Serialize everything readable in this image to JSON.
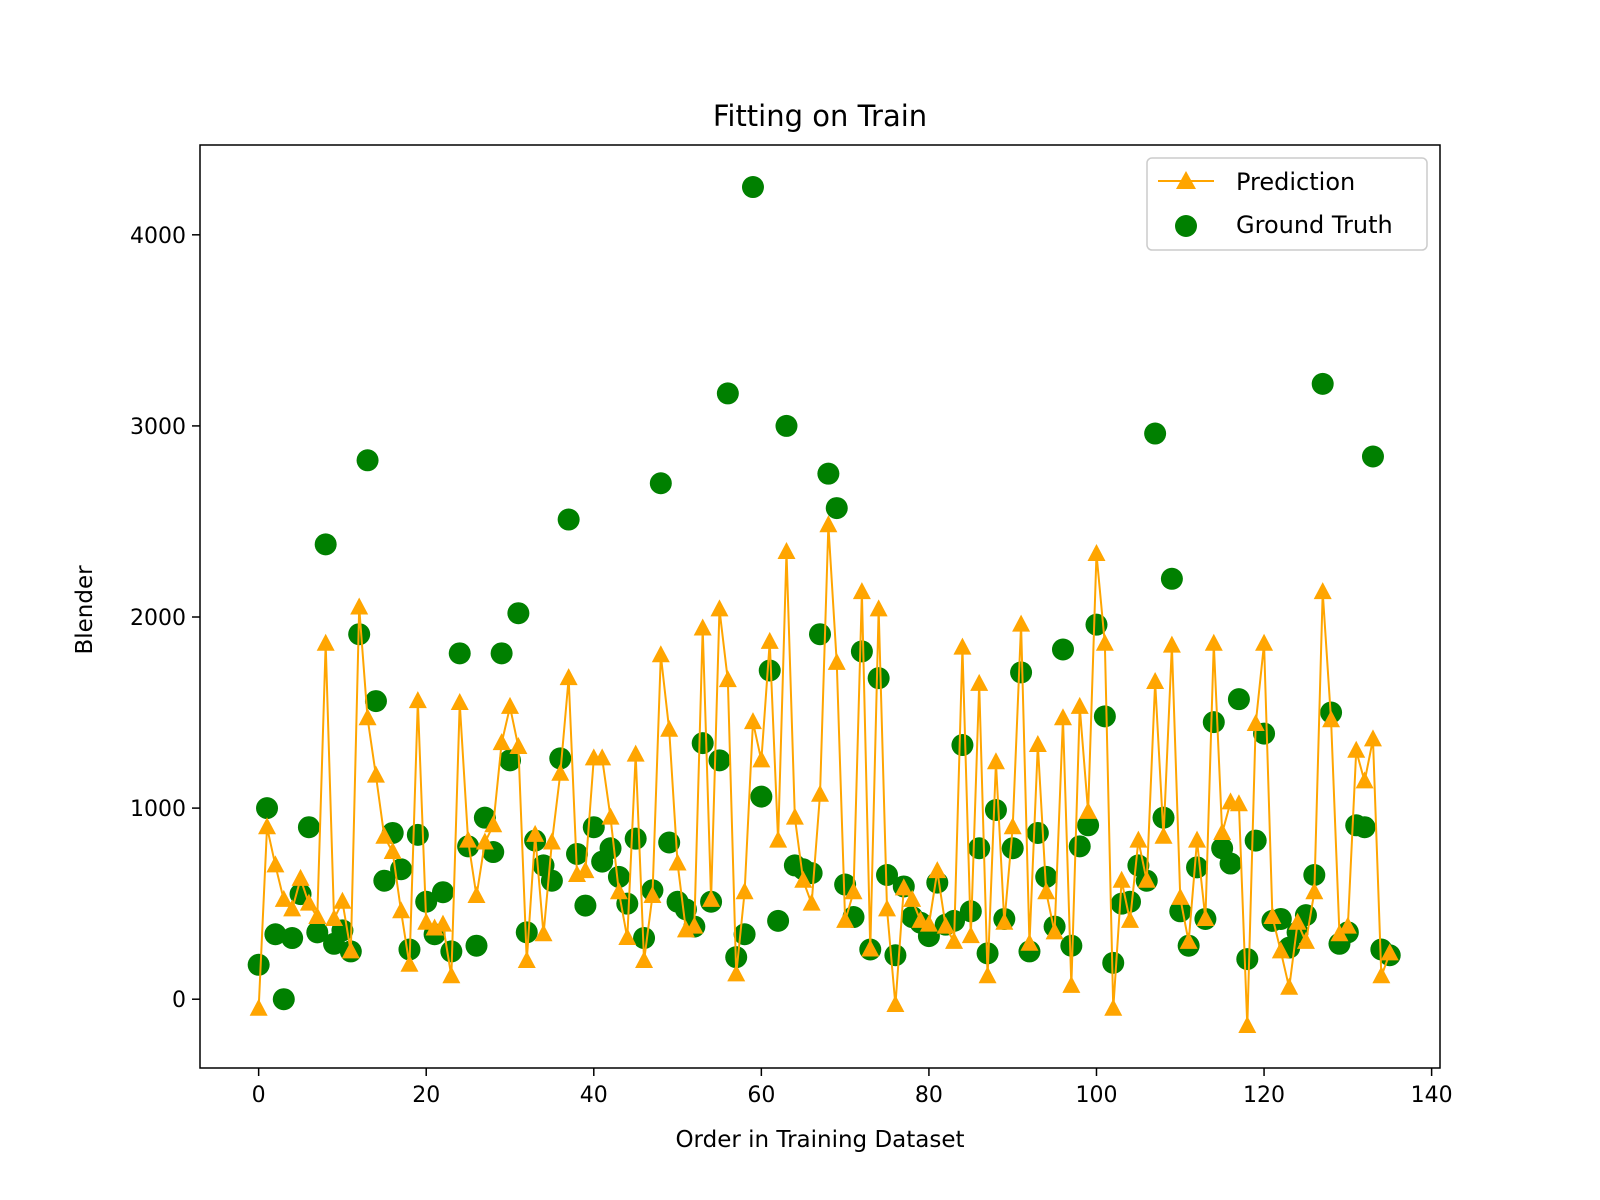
{
  "chart_data": {
    "type": "scatter",
    "title": "Fitting on Train",
    "xlabel": "Order in Training Dataset",
    "ylabel": "Blender",
    "xlim": [
      -7,
      141
    ],
    "ylim": [
      -360,
      4470
    ],
    "xticks": [
      0,
      20,
      40,
      60,
      80,
      100,
      120,
      140
    ],
    "yticks": [
      0,
      1000,
      2000,
      3000,
      4000
    ],
    "grid": false,
    "legend_position": "top-right",
    "series": [
      {
        "name": "Prediction",
        "style": "line-triangle",
        "color": "#FFA500",
        "x": [
          0,
          1,
          2,
          3,
          4,
          5,
          6,
          7,
          8,
          9,
          10,
          11,
          12,
          13,
          14,
          15,
          16,
          17,
          18,
          19,
          20,
          21,
          22,
          23,
          24,
          25,
          26,
          27,
          28,
          29,
          30,
          31,
          32,
          33,
          34,
          35,
          36,
          37,
          38,
          39,
          40,
          41,
          42,
          43,
          44,
          45,
          46,
          47,
          48,
          49,
          50,
          51,
          52,
          53,
          54,
          55,
          56,
          57,
          58,
          59,
          60,
          61,
          62,
          63,
          64,
          65,
          66,
          67,
          68,
          69,
          70,
          71,
          72,
          73,
          74,
          75,
          76,
          77,
          78,
          79,
          80,
          81,
          82,
          83,
          84,
          85,
          86,
          87,
          88,
          89,
          90,
          91,
          92,
          93,
          94,
          95,
          96,
          97,
          98,
          99,
          100,
          101,
          102,
          103,
          104,
          105,
          106,
          107,
          108,
          109,
          110,
          111,
          112,
          113,
          114,
          115,
          116,
          117,
          118,
          119,
          120,
          121,
          122,
          123,
          124,
          125,
          126,
          127,
          128,
          129,
          130,
          131,
          132,
          133,
          134,
          135
        ],
        "y": [
          -50,
          900,
          700,
          520,
          470,
          630,
          500,
          430,
          1860,
          420,
          510,
          250,
          2050,
          1470,
          1170,
          850,
          770,
          460,
          180,
          1560,
          400,
          370,
          390,
          120,
          1550,
          830,
          540,
          820,
          910,
          1340,
          1530,
          1320,
          200,
          860,
          340,
          820,
          1180,
          1680,
          650,
          670,
          1260,
          1260,
          950,
          560,
          320,
          1280,
          200,
          540,
          1800,
          1410,
          710,
          360,
          380,
          1940,
          520,
          2040,
          1670,
          130,
          560,
          1450,
          1250,
          1870,
          830,
          2340,
          950,
          620,
          500,
          1070,
          2480,
          1760,
          410,
          560,
          2130,
          260,
          2040,
          470,
          -30,
          580,
          520,
          410,
          390,
          670,
          380,
          300,
          1840,
          330,
          1650,
          120,
          1240,
          400,
          900,
          1960,
          290,
          1330,
          560,
          350,
          1470,
          70,
          1530,
          980,
          2330,
          1860,
          -50,
          620,
          410,
          830,
          620,
          1660,
          850,
          1850,
          530,
          300,
          830,
          420,
          1860,
          870,
          1030,
          1020,
          -140,
          1440,
          1860,
          430,
          250,
          60,
          400,
          300,
          560,
          2130,
          1460,
          340,
          380,
          1300,
          1140,
          1360,
          120,
          240
        ]
      },
      {
        "name": "Ground Truth",
        "style": "marker-circle",
        "color": "#008000",
        "x": [
          0,
          1,
          2,
          3,
          4,
          5,
          6,
          7,
          8,
          9,
          10,
          11,
          12,
          13,
          14,
          15,
          16,
          17,
          18,
          19,
          20,
          21,
          22,
          23,
          24,
          25,
          26,
          27,
          28,
          29,
          30,
          31,
          32,
          33,
          34,
          35,
          36,
          37,
          38,
          39,
          40,
          41,
          42,
          43,
          44,
          45,
          46,
          47,
          48,
          49,
          50,
          51,
          52,
          53,
          54,
          55,
          56,
          57,
          58,
          59,
          60,
          61,
          62,
          63,
          64,
          65,
          66,
          67,
          68,
          69,
          70,
          71,
          72,
          73,
          74,
          75,
          76,
          77,
          78,
          79,
          80,
          81,
          82,
          83,
          84,
          85,
          86,
          87,
          88,
          89,
          90,
          91,
          92,
          93,
          94,
          95,
          96,
          97,
          98,
          99,
          100,
          101,
          102,
          103,
          104,
          105,
          106,
          107,
          108,
          109,
          110,
          111,
          112,
          113,
          114,
          115,
          116,
          117,
          118,
          119,
          120,
          121,
          122,
          123,
          124,
          125,
          126,
          127,
          128,
          129,
          130,
          131,
          132,
          133,
          134,
          135
        ],
        "y": [
          180,
          1000,
          340,
          0,
          320,
          550,
          900,
          350,
          2380,
          290,
          360,
          250,
          1910,
          2820,
          1560,
          620,
          870,
          680,
          260,
          860,
          510,
          340,
          560,
          250,
          1810,
          800,
          280,
          950,
          770,
          1810,
          1250,
          2020,
          350,
          830,
          700,
          620,
          1260,
          2510,
          760,
          490,
          900,
          720,
          790,
          640,
          500,
          840,
          320,
          570,
          2700,
          820,
          510,
          470,
          380,
          1340,
          510,
          1250,
          3170,
          220,
          340,
          4250,
          1060,
          1720,
          410,
          3000,
          700,
          680,
          660,
          1910,
          2750,
          2570,
          600,
          430,
          1820,
          260,
          1680,
          650,
          230,
          590,
          430,
          400,
          330,
          610,
          390,
          410,
          1330,
          460,
          790,
          240,
          990,
          420,
          790,
          1710,
          250,
          870,
          640,
          380,
          1830,
          280,
          800,
          910,
          1960,
          1480,
          190,
          500,
          510,
          700,
          620,
          2960,
          950,
          2200,
          460,
          280,
          690,
          420,
          1450,
          790,
          710,
          1570,
          210,
          830,
          1390,
          410,
          420,
          270,
          350,
          440,
          650,
          3220,
          1500,
          290,
          350,
          910,
          900,
          2840,
          260,
          230
        ]
      }
    ]
  }
}
